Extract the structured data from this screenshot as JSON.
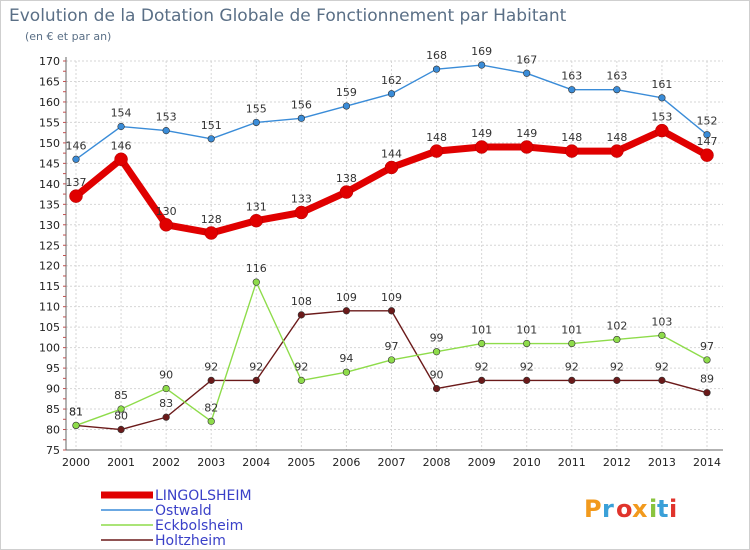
{
  "chart_data": {
    "type": "line",
    "title": "Evolution de la Dotation Globale de Fonctionnement par Habitant",
    "subtitle": "(en € et par an)",
    "xlabel": "",
    "ylabel": "",
    "x": [
      "2000",
      "2001",
      "2002",
      "2003",
      "2004",
      "2005",
      "2006",
      "2007",
      "2008",
      "2009",
      "2010",
      "2011",
      "2012",
      "2013",
      "2014"
    ],
    "ylim": [
      75,
      170
    ],
    "yticks": [
      75,
      80,
      85,
      90,
      95,
      100,
      105,
      110,
      115,
      120,
      125,
      130,
      135,
      140,
      145,
      150,
      155,
      160,
      165,
      170
    ],
    "grid": true,
    "legend_position": "bottom-left",
    "series": [
      {
        "name": "LINGOLSHEIM",
        "color": "#e00000",
        "values": [
          137,
          146,
          130,
          128,
          131,
          133,
          138,
          144,
          148,
          149,
          149,
          148,
          148,
          153,
          147
        ]
      },
      {
        "name": "Ostwald",
        "color": "#3a8cd8",
        "values": [
          146,
          154,
          153,
          151,
          155,
          156,
          159,
          162,
          168,
          169,
          167,
          163,
          163,
          161,
          152
        ]
      },
      {
        "name": "Eckbolsheim",
        "color": "#8edc4a",
        "values": [
          81,
          85,
          90,
          82,
          116,
          92,
          94,
          97,
          99,
          101,
          101,
          101,
          102,
          103,
          97
        ]
      },
      {
        "name": "Holtzheim",
        "color": "#6b1a1a",
        "values": [
          81,
          80,
          83,
          92,
          92,
          108,
          109,
          109,
          90,
          92,
          92,
          92,
          92,
          92,
          89
        ]
      }
    ]
  },
  "logo": {
    "text": "Proxiti",
    "colors": [
      "#f29a1d",
      "#3aa0d8",
      "#e0342c",
      "#f29a1d",
      "#8ac43f",
      "#3aa0d8",
      "#e0342c"
    ]
  }
}
